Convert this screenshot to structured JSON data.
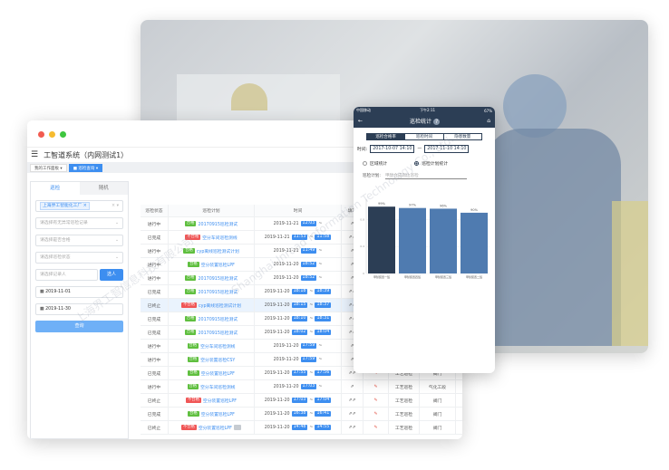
{
  "app": {
    "title": "工智道系统（内网测试1）",
    "tabs": [
      {
        "label": "我的工作面板"
      },
      {
        "label": "巡检查询"
      }
    ]
  },
  "filters": {
    "tabs": [
      "巡检",
      "随机"
    ],
    "factory_chip": "上海界工智能化工厂",
    "abnormal_placeholder": "请选择有无异常巡检记录",
    "qualified_placeholder": "请选择是否合格",
    "status_placeholder": "请选择巡检状态",
    "recorder_placeholder": "请选择记录人",
    "select_button": "选人",
    "start_date": "2019-11-01",
    "end_date": "2019-11-30",
    "query_button": "查询"
  },
  "table": {
    "headers": [
      "巡检状态",
      "巡检计划",
      "时间",
      "填写"
    ],
    "rows": [
      {
        "status": "进行中",
        "result": "合格",
        "ok": true,
        "plan": "20170915巡检测试",
        "date": "2019-11-21",
        "start": "12:03",
        "end": ""
      },
      {
        "status": "已完成",
        "result": "不合格",
        "ok": false,
        "plan": "空分车间巡检测线",
        "date": "2019-11-21",
        "start": "11:53",
        "end": "11:58"
      },
      {
        "status": "进行中",
        "result": "合格",
        "ok": true,
        "plan": "cyp离线巡检测试计划",
        "date": "2019-11-21",
        "start": "11:49",
        "end": ""
      },
      {
        "status": "进行中",
        "result": "合格",
        "ok": true,
        "plan": "空分装置巡检LPF",
        "date": "2019-11-20",
        "start": "18:52",
        "end": ""
      },
      {
        "status": "进行中",
        "result": "合格",
        "ok": true,
        "plan": "20170915巡检测试",
        "date": "2019-11-20",
        "start": "18:52",
        "end": ""
      },
      {
        "status": "已完成",
        "result": "合格",
        "ok": true,
        "plan": "20170915巡检测试",
        "date": "2019-11-20",
        "start": "18:18",
        "end": "18:39"
      },
      {
        "status": "已终止",
        "result": "不合格",
        "ok": false,
        "plan": "cyp离线巡检测试计划",
        "date": "2019-11-20",
        "start": "18:15",
        "end": "18:37"
      },
      {
        "status": "已完成",
        "result": "合格",
        "ok": true,
        "plan": "20170915巡检测试",
        "date": "2019-11-20",
        "start": "18:10",
        "end": "18:31"
      },
      {
        "status": "已完成",
        "result": "合格",
        "ok": true,
        "plan": "20170915巡检测试",
        "date": "2019-11-20",
        "start": "18:02",
        "end": "18:04"
      },
      {
        "status": "进行中",
        "result": "合格",
        "ok": true,
        "plan": "空分车间巡检测线",
        "date": "2019-11-20",
        "start": "17:59",
        "end": ""
      },
      {
        "status": "进行中",
        "result": "合格",
        "ok": true,
        "plan": "空分装置巡检CSY",
        "date": "2019-11-20",
        "start": "17:59",
        "end": ""
      },
      {
        "status": "已完成",
        "result": "合格",
        "ok": true,
        "plan": "空分装置巡检LPF",
        "date": "2019-11-20",
        "start": "17:55",
        "end": "17:56"
      },
      {
        "status": "进行中",
        "result": "合格",
        "ok": true,
        "plan": "空分车间巡检测线",
        "date": "2019-11-20",
        "start": "17:03",
        "end": ""
      },
      {
        "status": "已终止",
        "result": "不合格",
        "ok": false,
        "plan": "空分装置巡检LPF",
        "date": "2019-11-20",
        "start": "17:03",
        "end": "17:04"
      },
      {
        "status": "已完成",
        "result": "合格",
        "ok": true,
        "plan": "空分装置巡检LPF",
        "date": "2019-11-20",
        "start": "16:38",
        "end": "16:41"
      },
      {
        "status": "已终止",
        "result": "不合格",
        "ok": false,
        "plan": "空分装置巡检LPF",
        "date": "2019-11-20",
        "start": "14:48",
        "end": "14:55"
      }
    ],
    "extra_rows": [
      {
        "type": "工艺巡检",
        "area": "阀门"
      },
      {
        "type": "工艺巡检",
        "area": "气化工段"
      },
      {
        "type": "工艺巡检",
        "area": "阀门"
      },
      {
        "type": "工艺巡检",
        "area": "阀门"
      },
      {
        "type": "工艺巡检",
        "area": "阀门"
      }
    ]
  },
  "phone": {
    "status_left": "中国移动",
    "status_time": "下午2:11",
    "status_right": "67%",
    "title": "巡检统计",
    "segments": [
      "巡检合格率",
      "巡检时间",
      "隐患数量"
    ],
    "time_label": "时间:",
    "time_from": "2017-10-07 14:10",
    "time_sep": "—",
    "time_to": "2017-11-10 14:10",
    "radio_area": "区域统计",
    "radio_plan": "巡检计划统计",
    "plan_label": "巡检计划:",
    "plan_value": "甲醇合成岗位巡检"
  },
  "chart_data": {
    "type": "bar",
    "categories": [
      "甲醇装置一班",
      "甲醇装置四班",
      "甲醇装置三班",
      "甲醇装置二班"
    ],
    "values": [
      0.99,
      0.97,
      0.96,
      0.9
    ],
    "data_labels": [
      "99%",
      "97%",
      "96%",
      "90%"
    ],
    "yticks": [
      "0",
      "0.4",
      "0.8"
    ],
    "ylim": [
      0,
      1.1
    ],
    "colors": [
      "#2c3e55",
      "#4f7bb0",
      "#4f7bb0",
      "#4f7bb0"
    ]
  },
  "colors": {
    "accent": "#3d8ef0",
    "phone_nav": "#2c3e55",
    "ok": "#5fbf3f",
    "bad": "#f05656"
  }
}
